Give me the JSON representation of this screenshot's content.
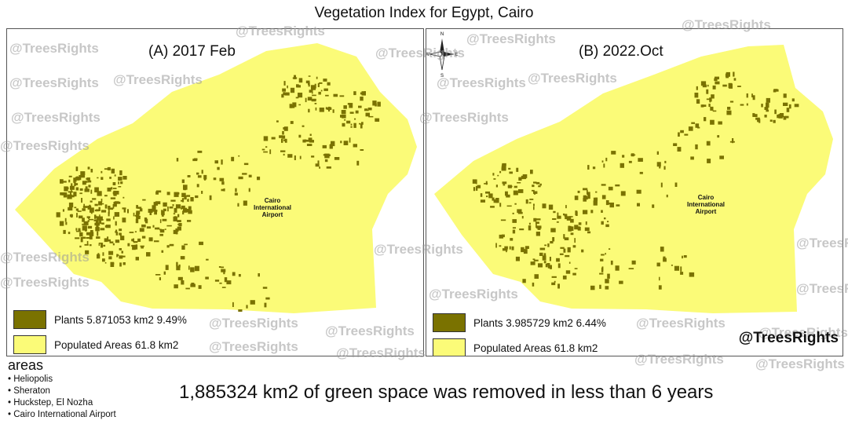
{
  "title": "Vegetation Index for Egypt, Cairo",
  "colors": {
    "plants": "#7a7200",
    "populated": "#fbfb78",
    "watermark": "#9a9a9a"
  },
  "panels": [
    {
      "title": "(A) 2017 Feb",
      "airport_label": "Cairo\nInternational\nAirport",
      "legend": {
        "plants": "Plants 5.871053 km2 9.49%",
        "populated": "Populated Areas 61.8 km2"
      }
    },
    {
      "title": "(B) 2022.Oct",
      "airport_label": "Cairo\nInternational\nAirport",
      "legend": {
        "plants": "Plants 3.985729 km2 6.44%",
        "populated": "Populated Areas 61.8 km2"
      },
      "compass": {
        "north": "N",
        "south": "S",
        "east": "E",
        "west": "W"
      }
    }
  ],
  "handle": "@TreesRights",
  "watermark_text": "@TreesRights",
  "areas": {
    "heading": "areas",
    "items": [
      "Heliopolis",
      "Sheraton",
      "Huckstep, El Nozha",
      "Cairo International Airport"
    ]
  },
  "summary": "1,885324 km2 of green space was removed in less than 6 years"
}
